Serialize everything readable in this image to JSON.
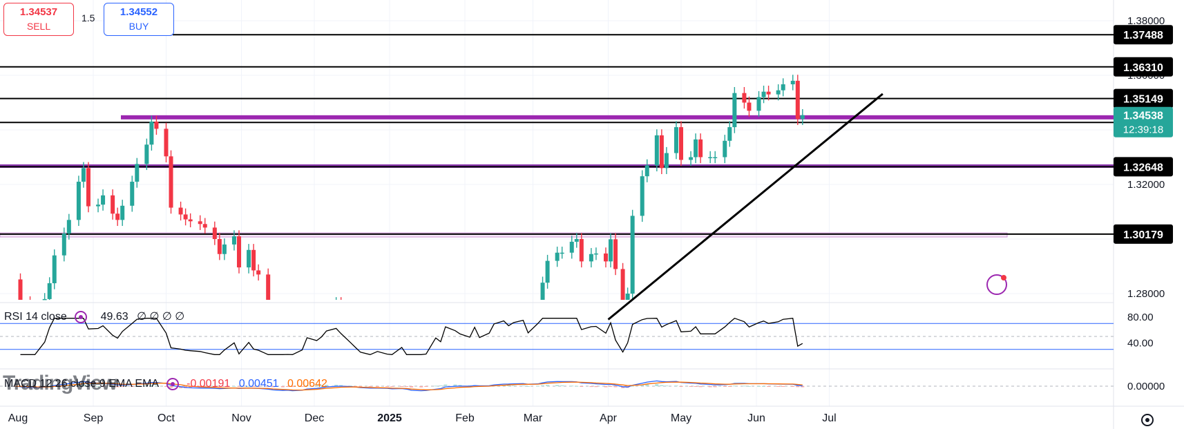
{
  "trade": {
    "sell_price": "1.34537",
    "sell_label": "SELL",
    "spread": "1.5",
    "buy_price": "1.34552",
    "buy_label": "BUY"
  },
  "watermark": "TradingView",
  "rsi": {
    "label": "RSI 14 close",
    "value": "49.63",
    "extras": "∅ ∅ ∅ ∅",
    "upper_line": 70,
    "lower_line": 30,
    "mid_line": 50
  },
  "macd": {
    "label": "MACD 12 26 close 9 EMA EMA",
    "histogram": "-0.00191",
    "macd": "0.00451",
    "signal": "0.00642"
  },
  "colors": {
    "up": "#26a69a",
    "down": "#f23645",
    "level_line": "#000000",
    "zone": "#9c27b0",
    "rsi_band": "#2962ff",
    "macd_line": "#2962ff",
    "signal_line": "#ff6d00",
    "badge_bg": "#000000",
    "current_badge": "#26a69a"
  },
  "chart_data": {
    "type": "candlestick",
    "ylim": [
      1.2705,
      1.3855
    ],
    "price_ticks": [
      "1.38000",
      "1.36000",
      "1.34000",
      "1.32000",
      "1.30000",
      "1.28000"
    ],
    "rsi_ticks": [
      "80.00",
      "40.00"
    ],
    "macd_ticks": [
      "0.00000"
    ],
    "x_ticks": [
      "Aug",
      "Sep",
      "Oct",
      "Nov",
      "Dec",
      "2025",
      "Feb",
      "Mar",
      "Apr",
      "May",
      "Jun",
      "Jul"
    ],
    "levels": [
      {
        "label": "1.37488",
        "value": 1.37488
      },
      {
        "label": "1.36310",
        "value": 1.3631
      },
      {
        "label": "1.35149",
        "value": 1.35149
      },
      {
        "label": "1.34271",
        "value": 1.34271
      },
      {
        "label": "1.32648",
        "value": 1.32648
      },
      {
        "label": "1.30179",
        "value": 1.30179
      }
    ],
    "current_price": {
      "label": "1.34538",
      "countdown": "12:39:18",
      "value": 1.34538
    },
    "zones": [
      {
        "value": 1.3446
      },
      {
        "value": 1.3266
      },
      {
        "value": 1.3015
      }
    ],
    "trendline": {
      "from": {
        "date": "2025-04-01",
        "price": 1.2705
      },
      "to": {
        "date": "2025-07-23",
        "price": 1.3532
      }
    },
    "closes": [
      {
        "date": "2024-07-31",
        "close": 1.2852
      },
      {
        "date": "2024-08-02",
        "close": 1.2768
      },
      {
        "date": "2024-08-06",
        "close": 1.2726
      },
      {
        "date": "2024-08-08",
        "close": 1.275
      },
      {
        "date": "2024-08-12",
        "close": 1.278
      },
      {
        "date": "2024-08-14",
        "close": 1.2838
      },
      {
        "date": "2024-08-16",
        "close": 1.294
      },
      {
        "date": "2024-08-20",
        "close": 1.302
      },
      {
        "date": "2024-08-22",
        "close": 1.307
      },
      {
        "date": "2024-08-26",
        "close": 1.321
      },
      {
        "date": "2024-08-28",
        "close": 1.326
      },
      {
        "date": "2024-08-30",
        "close": 1.312
      },
      {
        "date": "2024-09-03",
        "close": 1.3126
      },
      {
        "date": "2024-09-05",
        "close": 1.316
      },
      {
        "date": "2024-09-09",
        "close": 1.3093
      },
      {
        "date": "2024-09-11",
        "close": 1.307
      },
      {
        "date": "2024-09-13",
        "close": 1.3122
      },
      {
        "date": "2024-09-17",
        "close": 1.321
      },
      {
        "date": "2024-09-19",
        "close": 1.3275
      },
      {
        "date": "2024-09-23",
        "close": 1.3346
      },
      {
        "date": "2024-09-25",
        "close": 1.343
      },
      {
        "date": "2024-09-27",
        "close": 1.3404
      },
      {
        "date": "2024-10-01",
        "close": 1.3303
      },
      {
        "date": "2024-10-03",
        "close": 1.3115
      },
      {
        "date": "2024-10-07",
        "close": 1.309
      },
      {
        "date": "2024-10-09",
        "close": 1.3072
      },
      {
        "date": "2024-10-11",
        "close": 1.3065
      },
      {
        "date": "2024-10-15",
        "close": 1.3055
      },
      {
        "date": "2024-10-17",
        "close": 1.3042
      },
      {
        "date": "2024-10-21",
        "close": 1.3
      },
      {
        "date": "2024-10-23",
        "close": 1.2945
      },
      {
        "date": "2024-10-25",
        "close": 1.298
      },
      {
        "date": "2024-10-29",
        "close": 1.301
      },
      {
        "date": "2024-10-31",
        "close": 1.2896
      },
      {
        "date": "2024-11-04",
        "close": 1.296
      },
      {
        "date": "2024-11-06",
        "close": 1.2885
      },
      {
        "date": "2024-11-08",
        "close": 1.287
      },
      {
        "date": "2024-11-12",
        "close": 1.2746
      },
      {
        "date": "2024-11-14",
        "close": 1.267
      },
      {
        "date": "2024-11-18",
        "close": 1.262
      },
      {
        "date": "2024-11-20",
        "close": 1.2655
      },
      {
        "date": "2024-11-22",
        "close": 1.2531
      },
      {
        "date": "2024-11-26",
        "close": 1.259
      },
      {
        "date": "2024-11-28",
        "close": 1.269
      },
      {
        "date": "2024-12-02",
        "close": 1.266
      },
      {
        "date": "2024-12-04",
        "close": 1.269
      },
      {
        "date": "2024-12-06",
        "close": 1.2741
      },
      {
        "date": "2024-12-10",
        "close": 1.2765
      },
      {
        "date": "2024-12-12",
        "close": 1.2735
      },
      {
        "date": "2024-12-16",
        "close": 1.267
      },
      {
        "date": "2024-12-18",
        "close": 1.2625
      },
      {
        "date": "2024-12-20",
        "close": 1.257
      },
      {
        "date": "2024-12-24",
        "close": 1.2531
      },
      {
        "date": "2024-12-27",
        "close": 1.2545
      },
      {
        "date": "2024-12-31",
        "close": 1.2515
      },
      {
        "date": "2025-01-02",
        "close": 1.2425
      },
      {
        "date": "2025-01-06",
        "close": 1.248
      },
      {
        "date": "2025-01-08",
        "close": 1.236
      },
      {
        "date": "2025-01-10",
        "close": 1.2205
      },
      {
        "date": "2025-01-14",
        "close": 1.22
      },
      {
        "date": "2025-01-16",
        "close": 1.2235
      },
      {
        "date": "2025-01-20",
        "close": 1.235
      },
      {
        "date": "2025-01-22",
        "close": 1.231
      },
      {
        "date": "2025-01-24",
        "close": 1.248
      },
      {
        "date": "2025-01-28",
        "close": 1.2445
      },
      {
        "date": "2025-01-30",
        "close": 1.2417
      },
      {
        "date": "2025-02-03",
        "close": 1.239
      },
      {
        "date": "2025-02-05",
        "close": 1.249
      },
      {
        "date": "2025-02-07",
        "close": 1.2402
      },
      {
        "date": "2025-02-11",
        "close": 1.2445
      },
      {
        "date": "2025-02-13",
        "close": 1.2565
      },
      {
        "date": "2025-02-17",
        "close": 1.262
      },
      {
        "date": "2025-02-19",
        "close": 1.2588
      },
      {
        "date": "2025-02-21",
        "close": 1.263
      },
      {
        "date": "2025-02-25",
        "close": 1.2665
      },
      {
        "date": "2025-02-27",
        "close": 1.2588
      },
      {
        "date": "2025-03-03",
        "close": 1.27
      },
      {
        "date": "2025-03-05",
        "close": 1.284
      },
      {
        "date": "2025-03-07",
        "close": 1.292
      },
      {
        "date": "2025-03-11",
        "close": 1.295
      },
      {
        "date": "2025-03-13",
        "close": 1.295
      },
      {
        "date": "2025-03-17",
        "close": 1.299
      },
      {
        "date": "2025-03-19",
        "close": 1.3
      },
      {
        "date": "2025-03-21",
        "close": 1.2918
      },
      {
        "date": "2025-03-25",
        "close": 1.2945
      },
      {
        "date": "2025-03-27",
        "close": 1.2947
      },
      {
        "date": "2025-03-31",
        "close": 1.2918
      },
      {
        "date": "2025-04-02",
        "close": 1.2999
      },
      {
        "date": "2025-04-04",
        "close": 1.289
      },
      {
        "date": "2025-04-07",
        "close": 1.2725
      },
      {
        "date": "2025-04-09",
        "close": 1.28
      },
      {
        "date": "2025-04-11",
        "close": 1.3085
      },
      {
        "date": "2025-04-15",
        "close": 1.323
      },
      {
        "date": "2025-04-17",
        "close": 1.327
      },
      {
        "date": "2025-04-21",
        "close": 1.338
      },
      {
        "date": "2025-04-23",
        "close": 1.326
      },
      {
        "date": "2025-04-25",
        "close": 1.3315
      },
      {
        "date": "2025-04-29",
        "close": 1.341
      },
      {
        "date": "2025-05-01",
        "close": 1.329
      },
      {
        "date": "2025-05-05",
        "close": 1.33
      },
      {
        "date": "2025-05-07",
        "close": 1.3365
      },
      {
        "date": "2025-05-09",
        "close": 1.33
      },
      {
        "date": "2025-05-13",
        "close": 1.33
      },
      {
        "date": "2025-05-15",
        "close": 1.33
      },
      {
        "date": "2025-05-19",
        "close": 1.336
      },
      {
        "date": "2025-05-21",
        "close": 1.341
      },
      {
        "date": "2025-05-23",
        "close": 1.3535
      },
      {
        "date": "2025-05-27",
        "close": 1.35
      },
      {
        "date": "2025-05-29",
        "close": 1.347
      },
      {
        "date": "2025-06-02",
        "close": 1.352
      },
      {
        "date": "2025-06-04",
        "close": 1.354
      },
      {
        "date": "2025-06-06",
        "close": 1.353
      },
      {
        "date": "2025-06-10",
        "close": 1.3545
      },
      {
        "date": "2025-06-12",
        "close": 1.3567
      },
      {
        "date": "2025-06-16",
        "close": 1.358
      },
      {
        "date": "2025-06-18",
        "close": 1.344
      },
      {
        "date": "2025-06-20",
        "close": 1.3454
      }
    ]
  }
}
